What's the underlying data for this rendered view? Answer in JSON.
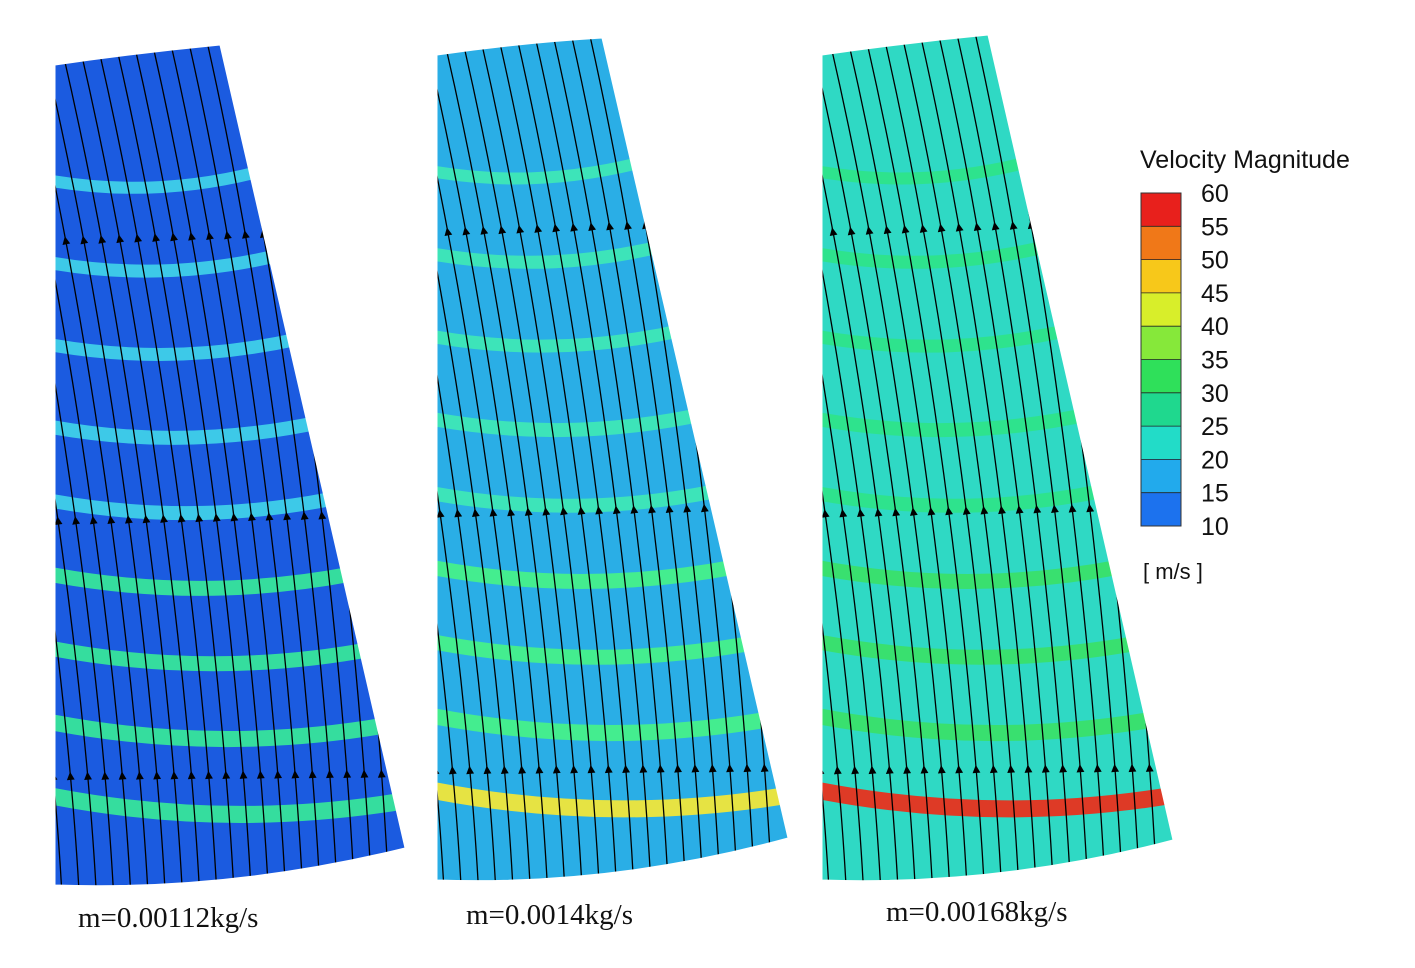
{
  "panels": [
    {
      "caption": "m=0.00112kg/s",
      "base_color": "#1b5be0",
      "band_color": "#3fd0e8",
      "strong_band_color": "#37e59a",
      "hot_color": "#37e59a"
    },
    {
      "caption": "m=0.0014kg/s",
      "base_color": "#2aaee6",
      "band_color": "#3ee7b6",
      "strong_band_color": "#46f08a",
      "hot_color": "#f0e63a"
    },
    {
      "caption": "m=0.00168kg/s",
      "base_color": "#2fd9c4",
      "band_color": "#2ee48a",
      "strong_band_color": "#3ae06a",
      "hot_color": "#e8311e"
    }
  ],
  "legend": {
    "title": "Velocity Magnitude",
    "unit": "[ m/s ]",
    "ticks": [
      "60",
      "55",
      "50",
      "45",
      "40",
      "35",
      "30",
      "25",
      "20",
      "15",
      "10"
    ],
    "colors": [
      "#e8201c",
      "#f07818",
      "#f7c81a",
      "#d8ee2a",
      "#86e83a",
      "#2fe05a",
      "#1fd88e",
      "#22dcc8",
      "#22aaec",
      "#1c72ee",
      "#0a22e6"
    ]
  }
}
